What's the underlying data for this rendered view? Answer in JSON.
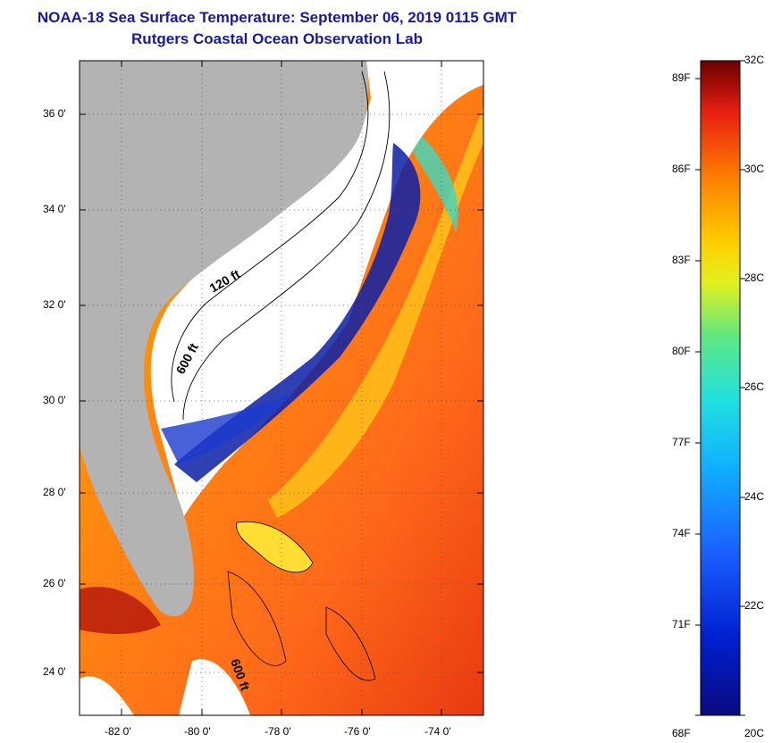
{
  "title": {
    "line1": "NOAA-18 Sea Surface Temperature:  September 06, 2019 0115 GMT",
    "line2": "Rutgers Coastal Ocean Observation Lab"
  },
  "map": {
    "lon_ticks": [
      "-82 0'",
      "-80 0'",
      "-78 0'",
      "-76 0'",
      "-74 0'"
    ],
    "lat_ticks": [
      "36 0'",
      "34 0'",
      "32 0'",
      "30 0'",
      "28 0'",
      "26 0'",
      "24 0'"
    ],
    "contour_labels": [
      "120 ft",
      "600 ft",
      "600 ft"
    ],
    "colors": {
      "land": "#b3b3b3",
      "cloud": "#ffffff",
      "warm": "#ff6a1a",
      "cool": "#0a1fa8"
    }
  },
  "colorbar": {
    "fahrenheit_labels": [
      "89F",
      "86F",
      "83F",
      "80F",
      "77F",
      "74F",
      "71F",
      "68F"
    ],
    "celsius_labels": [
      "32C",
      "30C",
      "28C",
      "26C",
      "24C",
      "22C",
      "20C"
    ],
    "range_celsius": [
      20,
      32
    ]
  }
}
